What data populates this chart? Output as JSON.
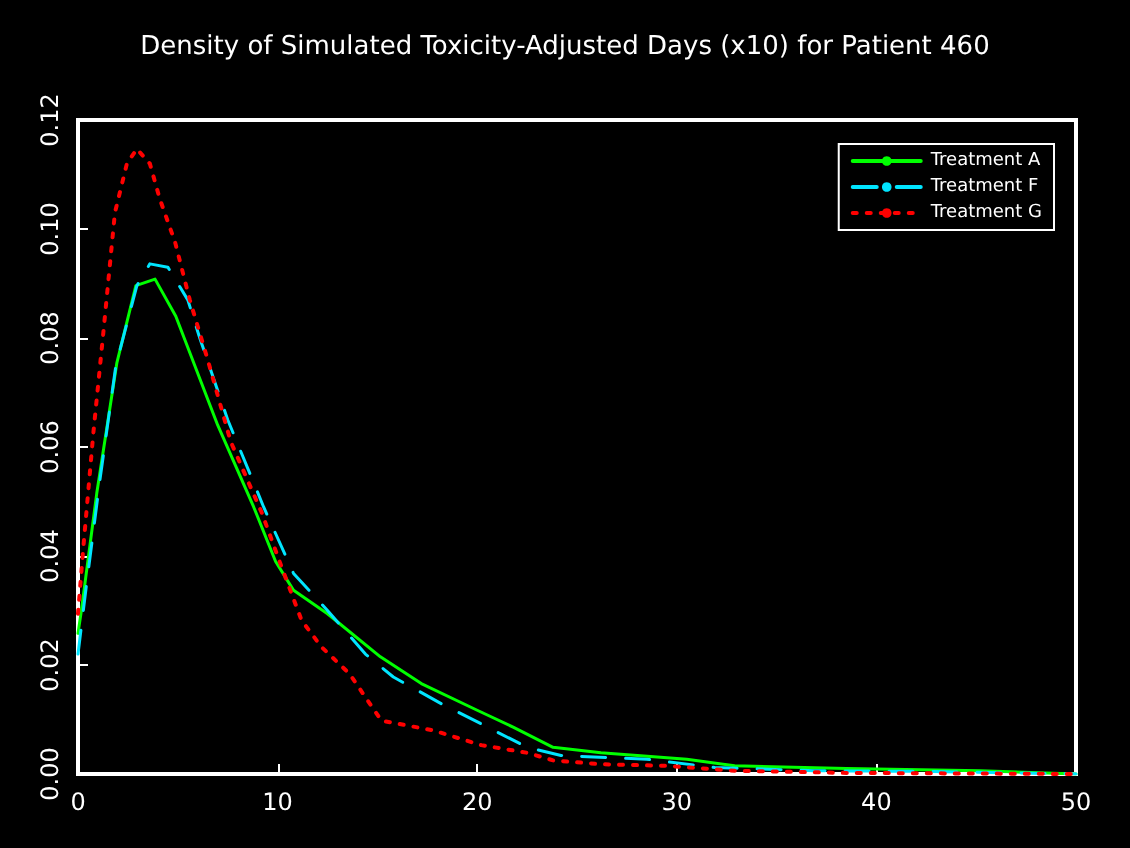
{
  "chart_data": {
    "type": "line",
    "title": "Density of Simulated Toxicity-Adjusted Days (x10) for Patient 460",
    "xlim": [
      0,
      50
    ],
    "xticks": [
      0,
      10,
      20,
      30,
      40,
      50
    ],
    "ylim": [
      0,
      0.12
    ],
    "yticks": [
      {
        "value": 0,
        "label": "0.00"
      },
      {
        "value": 0.02,
        "label": "0.02"
      },
      {
        "value": 0.04,
        "label": "0.04"
      },
      {
        "value": 0.06,
        "label": "0.06"
      },
      {
        "value": 0.08,
        "label": "0.08"
      },
      {
        "value": 0.1,
        "label": "0.10"
      },
      {
        "value": 0.12,
        "label": "0.12"
      }
    ],
    "grid": false,
    "legend": "top right",
    "marker": "none",
    "series": [
      {
        "name": "Treatment A",
        "color": "#00ff00",
        "line_style": "solid",
        "x": [
          0,
          0.17,
          0.94,
          1.95,
          2.9,
          3.86,
          4.9,
          7,
          8.8,
          9.9,
          10.8,
          12.5,
          15.15,
          17.2,
          20,
          21.8,
          23.8,
          26.2,
          30.5,
          32.9,
          38.5,
          45.2,
          50
        ],
        "values": [
          0.0258,
          0.03,
          0.0515,
          0.0755,
          0.0896,
          0.0908,
          0.084,
          0.064,
          0.049,
          0.039,
          0.0337,
          0.0294,
          0.0215,
          0.0166,
          0.0117,
          0.0086,
          0.0049,
          0.0039,
          0.0027,
          0.0015,
          0.001,
          0.0006,
          0
        ]
      },
      {
        "name": "Treatment F",
        "color": "#00e5ff",
        "line_style": "dashed",
        "x": [
          0,
          0.4,
          1.1,
          1.9,
          2.95,
          3.6,
          4.5,
          5.5,
          6.1,
          7.5,
          9.3,
          10.8,
          12.5,
          14.4,
          15.8,
          18.2,
          20.2,
          22.5,
          24.2,
          28.5,
          31.9,
          36.9,
          41.9,
          50
        ],
        "values": [
          0.022,
          0.034,
          0.054,
          0.075,
          0.0896,
          0.0936,
          0.093,
          0.087,
          0.08,
          0.065,
          0.049,
          0.0368,
          0.03,
          0.022,
          0.0178,
          0.0129,
          0.0092,
          0.0049,
          0.0034,
          0.0027,
          0.0012,
          0.0006,
          0.0005,
          0
        ]
      },
      {
        "name": "Treatment G",
        "color": "#ff0000",
        "line_style": "dotted",
        "x": [
          0,
          0.27,
          0.77,
          1.27,
          1.85,
          2.45,
          2.95,
          3.6,
          4.1,
          4.87,
          5.6,
          6.5,
          7.65,
          9.2,
          10.2,
          11.2,
          12.2,
          13.6,
          15.2,
          17.8,
          20.2,
          22.5,
          23.8,
          26.2,
          29.5,
          32.9,
          38.5,
          50
        ],
        "values": [
          0.0294,
          0.0417,
          0.0626,
          0.081,
          0.103,
          0.112,
          0.1147,
          0.112,
          0.1055,
          0.0975,
          0.087,
          0.076,
          0.061,
          0.048,
          0.038,
          0.0282,
          0.0233,
          0.0184,
          0.0098,
          0.008,
          0.0053,
          0.0039,
          0.0025,
          0.0018,
          0.0015,
          0.0006,
          0.0002,
          0
        ]
      }
    ]
  }
}
